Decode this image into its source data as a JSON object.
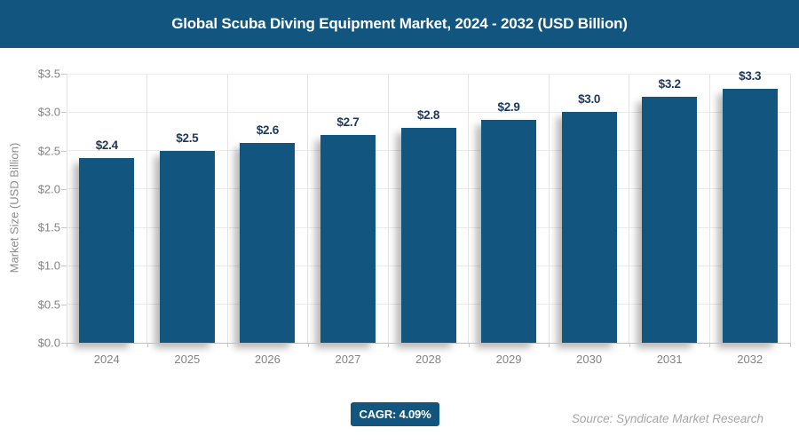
{
  "header": {
    "title": "Global Scuba Diving Equipment Market, 2024 - 2032 (USD Billion)"
  },
  "chart_data": {
    "type": "bar",
    "title": "Global Scuba Diving Equipment Market, 2024 - 2032 (USD Billion)",
    "categories": [
      "2024",
      "2025",
      "2026",
      "2027",
      "2028",
      "2029",
      "2030",
      "2031",
      "2032"
    ],
    "values": [
      2.4,
      2.5,
      2.6,
      2.7,
      2.8,
      2.9,
      3.0,
      3.2,
      3.3
    ],
    "data_labels": [
      "$2.4",
      "$2.5",
      "$2.6",
      "$2.7",
      "$2.8",
      "$2.9",
      "$3.0",
      "$3.2",
      "$3.3"
    ],
    "xlabel": "",
    "ylabel": "Market Size (USD Billion)",
    "ylim": [
      0,
      3.5
    ],
    "ytick_step": 0.5,
    "ytick_labels": [
      "$0.0",
      "$0.5",
      "$1.0",
      "$1.5",
      "$2.0",
      "$2.5",
      "$3.0",
      "$3.5"
    ],
    "grid": true,
    "legend": false
  },
  "colors": {
    "primary_blue": "#12567F",
    "bar_fill": "#12567F",
    "data_label_text": "#1F3A60",
    "axis_text": "#848484",
    "gridline": "#EBEBEB",
    "axis_line": "#BFBFBF",
    "source_text": "#A6A6A6",
    "header_text": "#FFFFFF"
  },
  "footer": {
    "cagr_label": "CAGR: 4.09%",
    "source": "Source: Syndicate Market Research"
  }
}
